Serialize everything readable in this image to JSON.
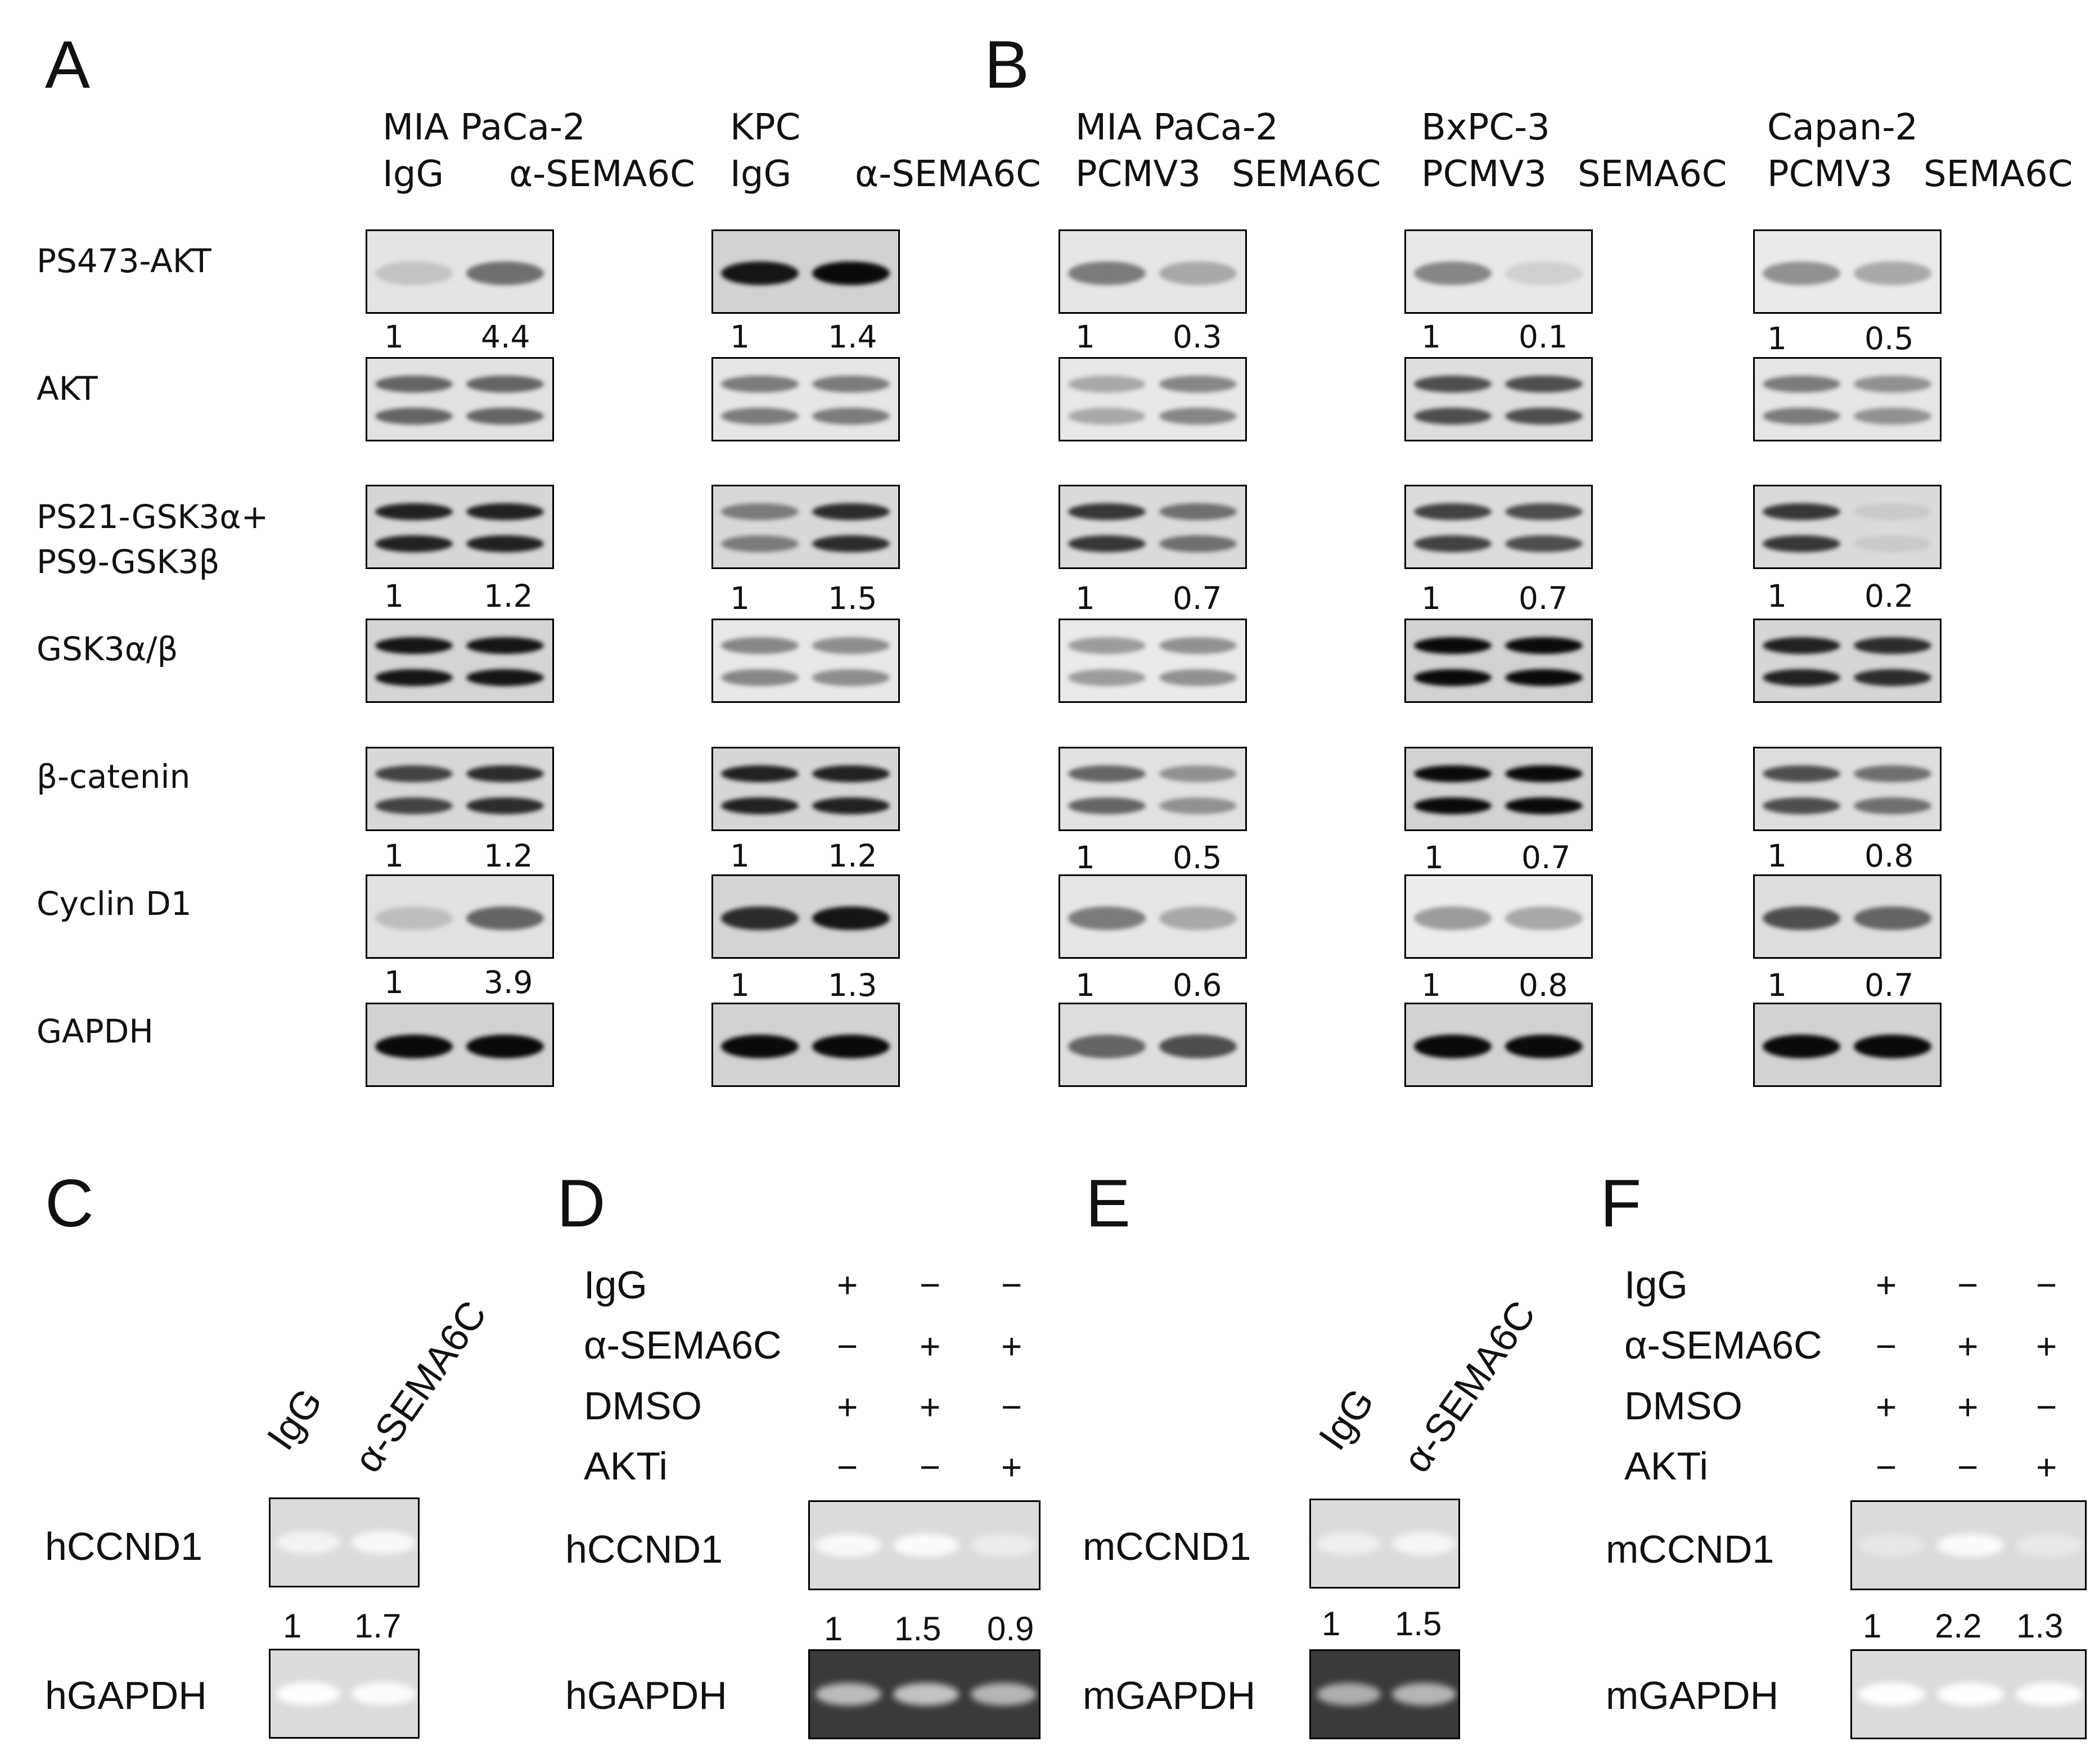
{
  "panels": {
    "A": "A",
    "B": "B",
    "C": "C",
    "D": "D",
    "E": "E",
    "F": "F"
  },
  "headers": {
    "a1_line1": "MIA PaCa-2",
    "a1_line2a": "IgG",
    "a1_line2b": "α-SEMA6C",
    "a2_line1": "KPC",
    "a2_line2a": "IgG",
    "a2_line2b": "α-SEMA6C",
    "b1_line1": "MIA PaCa-2",
    "b1_line2a": "PCMV3",
    "b1_line2b": "SEMA6C",
    "b2_line1": "BxPC-3",
    "b2_line2a": "PCMV3",
    "b2_line2b": "SEMA6C",
    "b3_line1": "Capan-2",
    "b3_line2a": "PCMV3",
    "b3_line2b": "SEMA6C"
  },
  "row_labels": {
    "r1": "PS473-AKT",
    "r2": "AKT",
    "r3a": "PS21-GSK3α+",
    "r3b": "PS9-GSK3β",
    "r4": "GSK3α/β",
    "r5": "β-catenin",
    "r6": "Cyclin D1",
    "r7": "GAPDH"
  },
  "quant": {
    "r1": [
      [
        "1",
        "4.4"
      ],
      [
        "1",
        "1.4"
      ],
      [
        "1",
        "0.3"
      ],
      [
        "1",
        "0.1"
      ],
      [
        "1",
        "0.5"
      ]
    ],
    "r3": [
      [
        "1",
        "1.2"
      ],
      [
        "1",
        "1.5"
      ],
      [
        "1",
        "0.7"
      ],
      [
        "1",
        "0.7"
      ],
      [
        "1",
        "0.2"
      ]
    ],
    "r5": [
      [
        "1",
        "1.2"
      ],
      [
        "1",
        "1.2"
      ],
      [
        "1",
        "0.5"
      ],
      [
        "1",
        "0.7"
      ],
      [
        "1",
        "0.8"
      ]
    ],
    "r6": [
      [
        "1",
        "3.9"
      ],
      [
        "1",
        "1.3"
      ],
      [
        "1",
        "0.6"
      ],
      [
        "1",
        "0.8"
      ],
      [
        "1",
        "0.7"
      ]
    ]
  },
  "panel_c": {
    "lane1": "IgG",
    "lane2": "α-SEMA6C",
    "target": "hCCND1",
    "control": "hGAPDH",
    "q1": "1",
    "q2": "1.7"
  },
  "panel_d": {
    "conditions": [
      {
        "label": "IgG",
        "signs": [
          "+",
          "−",
          "−"
        ]
      },
      {
        "label": "α-SEMA6C",
        "signs": [
          "−",
          "+",
          "+"
        ]
      },
      {
        "label": "DMSO",
        "signs": [
          "+",
          "+",
          "−"
        ]
      },
      {
        "label": "AKTi",
        "signs": [
          "−",
          "−",
          "+"
        ]
      }
    ],
    "target": "hCCND1",
    "control": "hGAPDH",
    "q": [
      "1",
      "1.5",
      "0.9"
    ]
  },
  "panel_e": {
    "lane1": "IgG",
    "lane2": "α-SEMA6C",
    "target": "mCCND1",
    "control": "mGAPDH",
    "q1": "1",
    "q2": "1.5"
  },
  "panel_f": {
    "conditions": [
      {
        "label": "IgG",
        "signs": [
          "+",
          "−",
          "−"
        ]
      },
      {
        "label": "α-SEMA6C",
        "signs": [
          "−",
          "+",
          "+"
        ]
      },
      {
        "label": "DMSO",
        "signs": [
          "+",
          "+",
          "−"
        ]
      },
      {
        "label": "AKTi",
        "signs": [
          "−",
          "−",
          "+"
        ]
      }
    ],
    "target": "mCCND1",
    "control": "mGAPDH",
    "q": [
      "1",
      "2.2",
      "1.3"
    ]
  },
  "western_levels": {
    "r1": [
      [
        0.18,
        0.55
      ],
      [
        0.95,
        1.0
      ],
      [
        0.5,
        0.3
      ],
      [
        0.45,
        0.12
      ],
      [
        0.4,
        0.3
      ]
    ],
    "r2": [
      [
        0.6,
        0.6
      ],
      [
        0.5,
        0.5
      ],
      [
        0.3,
        0.45
      ],
      [
        0.7,
        0.7
      ],
      [
        0.5,
        0.4
      ]
    ],
    "r3": [
      [
        0.9,
        0.9
      ],
      [
        0.5,
        0.85
      ],
      [
        0.8,
        0.55
      ],
      [
        0.75,
        0.7
      ],
      [
        0.8,
        0.15
      ]
    ],
    "r4": [
      [
        0.95,
        0.95
      ],
      [
        0.45,
        0.42
      ],
      [
        0.35,
        0.4
      ],
      [
        1.0,
        1.0
      ],
      [
        0.9,
        0.85
      ]
    ],
    "r5": [
      [
        0.75,
        0.85
      ],
      [
        0.9,
        0.9
      ],
      [
        0.6,
        0.4
      ],
      [
        1.0,
        1.0
      ],
      [
        0.7,
        0.55
      ]
    ],
    "r6": [
      [
        0.2,
        0.6
      ],
      [
        0.85,
        0.95
      ],
      [
        0.5,
        0.3
      ],
      [
        0.35,
        0.3
      ],
      [
        0.7,
        0.6
      ]
    ],
    "r7": [
      [
        1.0,
        1.0
      ],
      [
        1.0,
        1.0
      ],
      [
        0.6,
        0.7
      ],
      [
        1.0,
        1.0
      ],
      [
        1.0,
        1.0
      ]
    ]
  },
  "gel_levels": {
    "c_target": [
      0.6,
      0.75
    ],
    "c_control": [
      1.0,
      0.9
    ],
    "d_target": [
      0.8,
      0.85,
      0.35
    ],
    "d_control": [
      0.7,
      0.75,
      0.65
    ],
    "e_target": [
      0.45,
      0.65
    ],
    "e_control": [
      0.6,
      0.65
    ],
    "f_target": [
      0.2,
      0.85,
      0.25
    ],
    "f_control": [
      1.0,
      1.0,
      1.0
    ]
  }
}
